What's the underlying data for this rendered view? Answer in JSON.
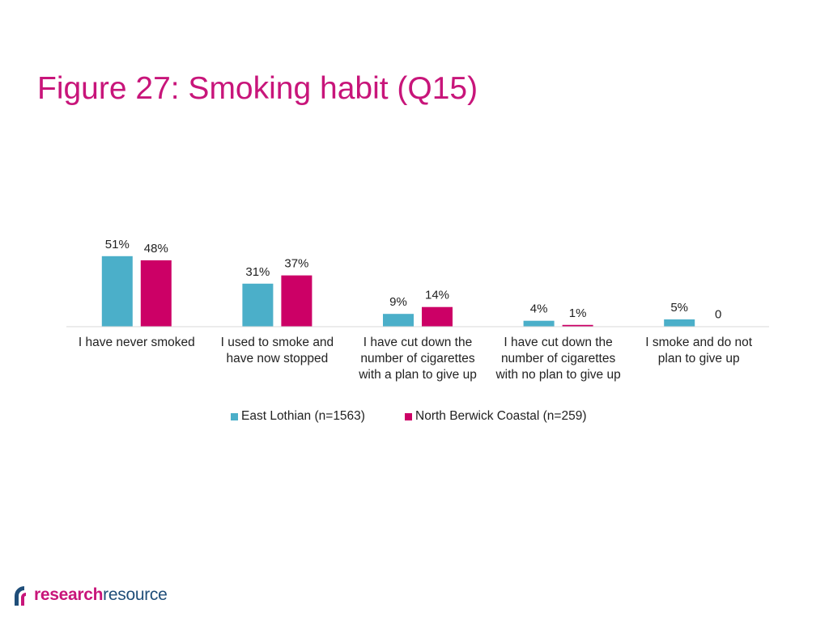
{
  "page": {
    "title": "Figure 27: Smoking habit (Q15)"
  },
  "colors": {
    "title": "#c8157a",
    "series1": "#4bafc9",
    "series2": "#cc0066",
    "logo_dark": "#1f4e79",
    "logo_accent": "#c8157a"
  },
  "chart_data": {
    "type": "bar",
    "title": "",
    "xlabel": "",
    "ylabel": "",
    "ylim": [
      0,
      60
    ],
    "grid": false,
    "legend_position": "bottom",
    "categories": [
      [
        "I have never smoked"
      ],
      [
        "I used to smoke and",
        "have now stopped"
      ],
      [
        "I have cut down the",
        "number of cigarettes",
        "with a plan to give up"
      ],
      [
        "I have cut down the",
        "number of cigarettes",
        "with no plan to give up"
      ],
      [
        "I smoke and do not",
        "plan to give up"
      ]
    ],
    "series": [
      {
        "name": "East Lothian (n=1563)",
        "values": [
          51,
          31,
          9,
          4,
          5
        ],
        "labels": [
          "51%",
          "31%",
          "9%",
          "4%",
          "5%"
        ]
      },
      {
        "name": "North Berwick Coastal (n=259)",
        "values": [
          48,
          37,
          14,
          1,
          0
        ],
        "labels": [
          "48%",
          "37%",
          "14%",
          "1%",
          "0"
        ]
      }
    ]
  },
  "logo": {
    "part1": "research",
    "part2": "resource"
  }
}
